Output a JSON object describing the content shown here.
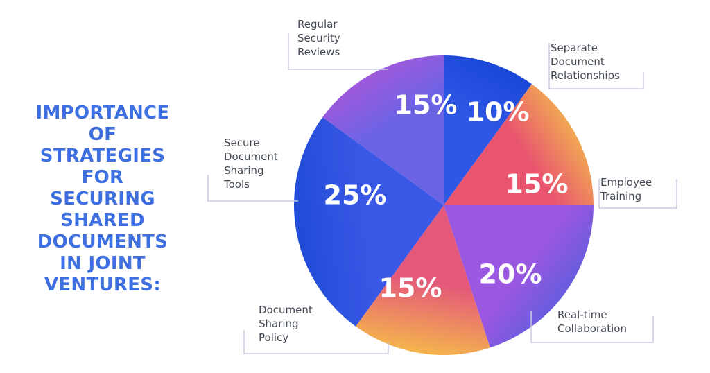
{
  "title_lines": [
    "IMPORTANCE",
    "OF",
    "STRATEGIES",
    "FOR",
    "SECURING",
    "SHARED",
    "DOCUMENTS",
    "IN JOINT",
    "VENTURES:"
  ],
  "chart_data": {
    "type": "pie",
    "title": "IMPORTANCE OF STRATEGIES FOR SECURING SHARED DOCUMENTS IN JOINT VENTURES:",
    "slices": [
      {
        "label": "Separate Document Relationships",
        "label_lines": [
          "Separate",
          "Document",
          "Relationships"
        ],
        "value": 10,
        "value_label": "10%",
        "colors": [
          "#2f57e6",
          "#1846d6"
        ]
      },
      {
        "label": "Employee Training",
        "label_lines": [
          "Employee",
          "Training"
        ],
        "value": 15,
        "value_label": "15%",
        "colors": [
          "#e9556f",
          "#f3c24a"
        ]
      },
      {
        "label": "Real-time Collaboration",
        "label_lines": [
          "Real-time",
          "Collaboration"
        ],
        "value": 20,
        "value_label": "20%",
        "colors": [
          "#9a57e0",
          "#4a60dc"
        ]
      },
      {
        "label": "Document Sharing Policy",
        "label_lines": [
          "Document",
          "Sharing",
          "Policy"
        ],
        "value": 15,
        "value_label": "15%",
        "colors": [
          "#e4587a",
          "#f5b84b"
        ]
      },
      {
        "label": "Secure Document Sharing Tools",
        "label_lines": [
          "Secure",
          "Document",
          "Sharing",
          "Tools"
        ],
        "value": 25,
        "value_label": "25%",
        "colors": [
          "#3a58e6",
          "#1f4bd6"
        ]
      },
      {
        "label": "Regular Security Reviews",
        "label_lines": [
          "Regular",
          "Security",
          "Reviews"
        ],
        "value": 15,
        "value_label": "15%",
        "colors": [
          "#6a64e4",
          "#b056da"
        ]
      }
    ],
    "start_angle_deg": 0,
    "direction": "clockwise",
    "callout_line_color": "#c8cbe8",
    "text_color": "#444a55",
    "title_color": "#3d6fe0"
  }
}
